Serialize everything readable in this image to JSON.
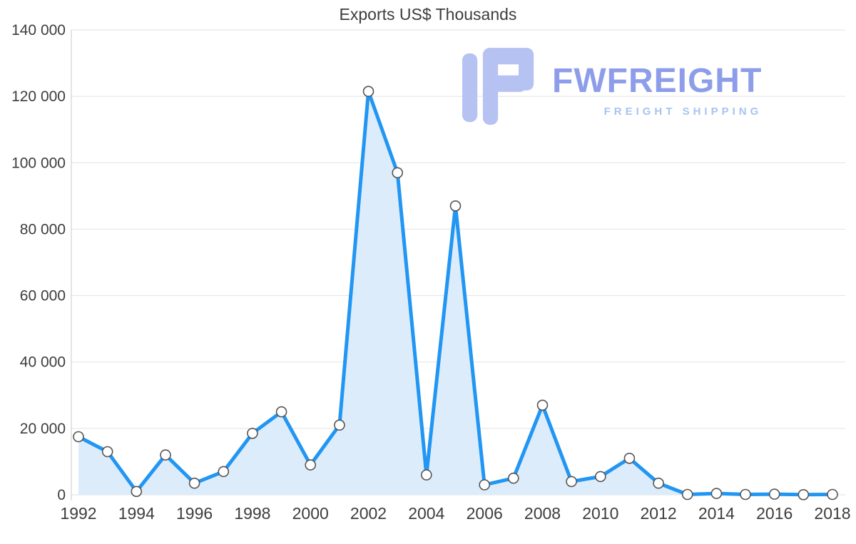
{
  "title": "Exports US$ Thousands",
  "watermark": {
    "brand": "FWFREIGHT",
    "tagline": "FREIGHT SHIPPING"
  },
  "colors": {
    "line": "#2196f3",
    "area": "#ddecfb",
    "marker_fill": "#ffffff",
    "marker_stroke": "#555555",
    "grid": "#e2e2e2",
    "axis": "#c9c9c9",
    "text": "#3d3d3d",
    "logo": "#b6c2f1"
  },
  "chart_data": {
    "type": "area",
    "title": "Exports US$ Thousands",
    "xlabel": "",
    "ylabel": "",
    "x": [
      1992,
      1993,
      1994,
      1995,
      1996,
      1997,
      1998,
      1999,
      2000,
      2001,
      2002,
      2003,
      2004,
      2005,
      2006,
      2007,
      2008,
      2009,
      2010,
      2011,
      2012,
      2013,
      2014,
      2015,
      2016,
      2017,
      2018
    ],
    "values": [
      17500,
      13000,
      1000,
      12000,
      3500,
      7000,
      18500,
      25000,
      9000,
      21000,
      121500,
      97000,
      6000,
      87000,
      3000,
      5000,
      27000,
      4000,
      5500,
      11000,
      3500,
      100,
      400,
      100,
      200,
      50,
      100
    ],
    "ylim": [
      0,
      140000
    ],
    "y_ticks": [
      {
        "value": 0,
        "label": "0"
      },
      {
        "value": 20000,
        "label": "20 000"
      },
      {
        "value": 40000,
        "label": "40 000"
      },
      {
        "value": 60000,
        "label": "60 000"
      },
      {
        "value": 80000,
        "label": "80 000"
      },
      {
        "value": 100000,
        "label": "100 000"
      },
      {
        "value": 120000,
        "label": "120 000"
      },
      {
        "value": 140000,
        "label": "140 000"
      }
    ],
    "x_tick_labels": [
      "1992",
      "1994",
      "1996",
      "1998",
      "2000",
      "2002",
      "2004",
      "2006",
      "2008",
      "2010",
      "2012",
      "2014",
      "2016",
      "2018"
    ],
    "grid": "horizontal",
    "legend": "none",
    "series_name": "Exports US$ Thousands"
  }
}
